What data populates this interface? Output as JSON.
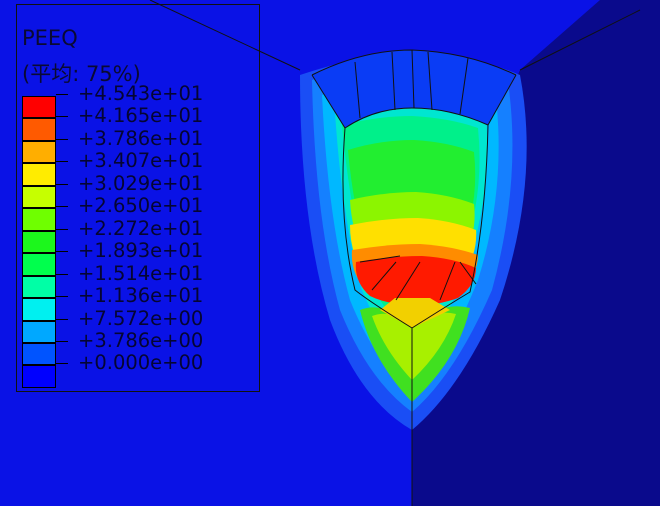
{
  "legend": {
    "title": "PEEQ",
    "subtitle": "(平均: 75%)",
    "colors": [
      "#ff0000",
      "#ff5a00",
      "#ffae00",
      "#ffec00",
      "#c6ff00",
      "#6fff00",
      "#1cf71c",
      "#00ff4d",
      "#00ffa6",
      "#00f0f0",
      "#00a8ff",
      "#0054ff",
      "#0000ff"
    ],
    "tick_labels": [
      "+4.543e+01",
      "+4.165e+01",
      "+3.786e+01",
      "+3.407e+01",
      "+3.029e+01",
      "+2.650e+01",
      "+2.272e+01",
      "+1.893e+01",
      "+1.514e+01",
      "+1.136e+01",
      "+7.572e+00",
      "+3.786e+00",
      "+0.000e+00"
    ]
  }
}
